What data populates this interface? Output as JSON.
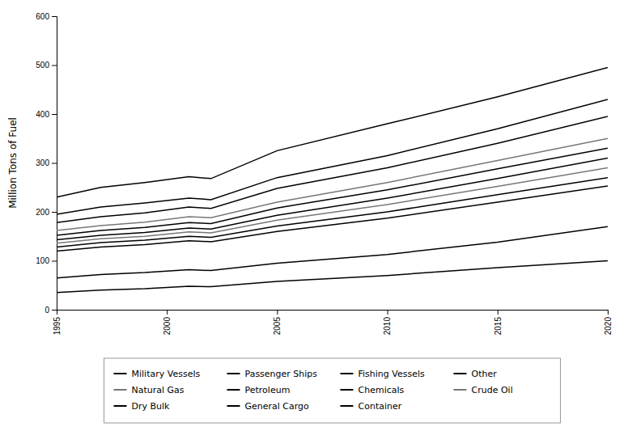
{
  "chart_data": {
    "type": "line",
    "ylabel": "Million Tons of Fuel",
    "x": [
      1995,
      1997,
      1999,
      2001,
      2002,
      2005,
      2010,
      2015,
      2020
    ],
    "series": [
      {
        "name": "Container",
        "color": "#000000",
        "values": [
          230,
          250,
          260,
          272,
          268,
          325,
          380,
          435,
          495
        ]
      },
      {
        "name": "General Cargo",
        "color": "#000000",
        "values": [
          195,
          210,
          218,
          228,
          225,
          270,
          315,
          370,
          430
        ]
      },
      {
        "name": "Dry Bulk",
        "color": "#000000",
        "values": [
          178,
          190,
          198,
          210,
          207,
          248,
          290,
          340,
          395
        ]
      },
      {
        "name": "Crude Oil",
        "color": "#777777",
        "values": [
          162,
          172,
          179,
          190,
          188,
          220,
          260,
          305,
          350
        ]
      },
      {
        "name": "Chemicals",
        "color": "#000000",
        "values": [
          152,
          162,
          168,
          178,
          176,
          208,
          245,
          288,
          330
        ]
      },
      {
        "name": "Petroleum",
        "color": "#000000",
        "values": [
          143,
          152,
          158,
          167,
          165,
          193,
          228,
          268,
          310
        ]
      },
      {
        "name": "Natural Gas",
        "color": "#777777",
        "values": [
          136,
          145,
          150,
          159,
          157,
          183,
          215,
          252,
          290
        ]
      },
      {
        "name": "Other",
        "color": "#000000",
        "values": [
          128,
          137,
          142,
          150,
          148,
          171,
          200,
          235,
          270
        ]
      },
      {
        "name": "Fishing Vessels",
        "color": "#000000",
        "values": [
          120,
          128,
          133,
          141,
          139,
          160,
          187,
          220,
          253
        ]
      },
      {
        "name": "Passenger Ships",
        "color": "#000000",
        "values": [
          65,
          72,
          76,
          82,
          80,
          95,
          113,
          138,
          170
        ]
      },
      {
        "name": "Military Vessels",
        "color": "#000000",
        "values": [
          35,
          40,
          43,
          48,
          47,
          58,
          70,
          86,
          100
        ]
      }
    ],
    "xlim": [
      1995,
      2020
    ],
    "xticks": [
      1995,
      2000,
      2005,
      2010,
      2015,
      2020
    ],
    "ylim": [
      0,
      600
    ],
    "yticks": [
      0,
      100,
      200,
      300,
      400,
      500,
      600
    ],
    "grid": false,
    "legend": "bottom"
  }
}
